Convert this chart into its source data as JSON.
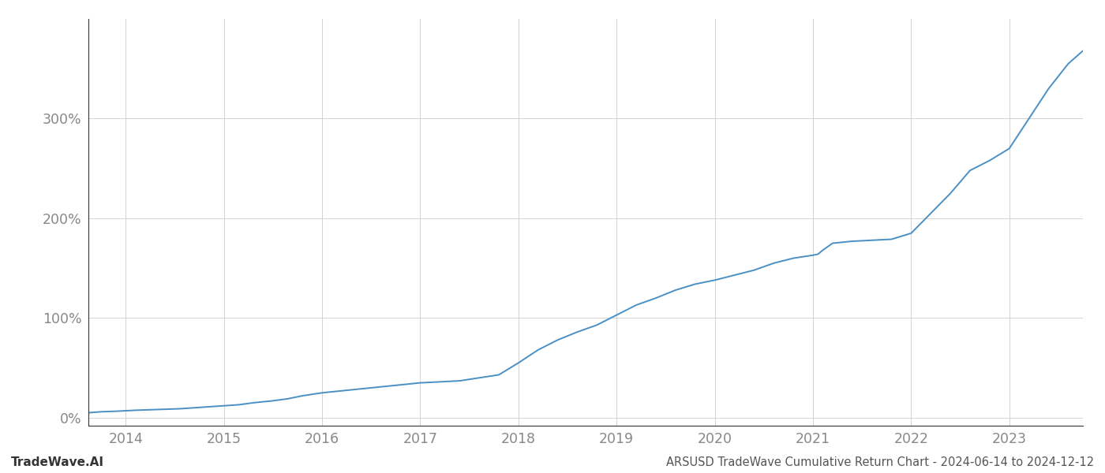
{
  "title": "ARSUSD TradeWave Cumulative Return Chart - 2024-06-14 to 2024-12-12",
  "watermark": "TradeWave.AI",
  "line_color": "#4a90c4",
  "background_color": "#ffffff",
  "grid_color": "#cccccc",
  "x_tick_color": "#888888",
  "y_tick_color": "#888888",
  "x_ticks": [
    2014,
    2015,
    2016,
    2017,
    2018,
    2019,
    2020,
    2021,
    2022,
    2023
  ],
  "y_ticks": [
    0,
    100,
    200,
    300
  ],
  "xlim": [
    2013.62,
    2023.75
  ],
  "ylim": [
    -8,
    400
  ],
  "data_x": [
    2013.62,
    2013.75,
    2013.9,
    2014.0,
    2014.1,
    2014.25,
    2014.4,
    2014.55,
    2014.7,
    2014.85,
    2015.0,
    2015.15,
    2015.3,
    2015.5,
    2015.65,
    2015.8,
    2016.0,
    2016.2,
    2016.4,
    2016.6,
    2016.8,
    2017.0,
    2017.2,
    2017.4,
    2017.6,
    2017.8,
    2018.0,
    2018.2,
    2018.4,
    2018.6,
    2018.8,
    2019.0,
    2019.2,
    2019.4,
    2019.6,
    2019.8,
    2020.0,
    2020.2,
    2020.4,
    2020.6,
    2020.8,
    2021.0,
    2021.05,
    2021.1,
    2021.2,
    2021.4,
    2021.6,
    2021.8,
    2022.0,
    2022.2,
    2022.4,
    2022.6,
    2022.8,
    2023.0,
    2023.2,
    2023.4,
    2023.6,
    2023.75
  ],
  "data_y": [
    5,
    6,
    6.5,
    7,
    7.5,
    8,
    8.5,
    9,
    10,
    11,
    12,
    13,
    15,
    17,
    19,
    22,
    25,
    27,
    29,
    31,
    33,
    35,
    36,
    37,
    40,
    43,
    55,
    68,
    78,
    86,
    93,
    103,
    113,
    120,
    128,
    134,
    138,
    143,
    148,
    155,
    160,
    163,
    164,
    168,
    175,
    177,
    178,
    179,
    185,
    205,
    225,
    248,
    258,
    270,
    300,
    330,
    355,
    368
  ]
}
